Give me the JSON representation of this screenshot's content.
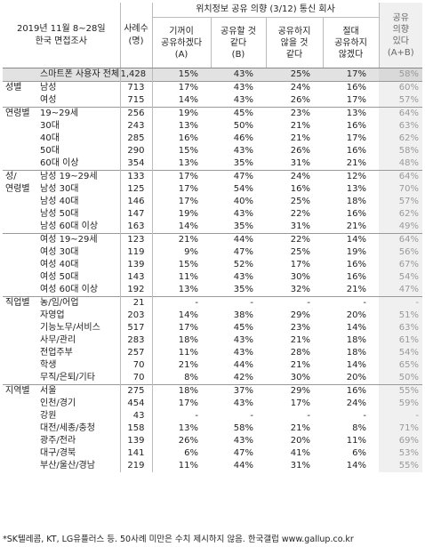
{
  "header": {
    "survey": "2019년 11월 8~28일",
    "survey2": "한국 면접조사",
    "n_label": "사례수",
    "n_unit": "(명)",
    "group_title": "위치정보 공유 의향 (3/12) 통신 회사",
    "cols": [
      {
        "l1": "기꺼이",
        "l2": "공유하겠다",
        "l3": "(A)"
      },
      {
        "l1": "공유할 것",
        "l2": "같다",
        "l3": "(B)"
      },
      {
        "l1": "공유하지",
        "l2": "않을 것",
        "l3": "같다"
      },
      {
        "l1": "절대",
        "l2": "공유하지",
        "l3": "않겠다"
      }
    ],
    "share": {
      "l1": "공유",
      "l2": "의향",
      "l3": "있다",
      "l4": "(A+B)"
    }
  },
  "rows": [
    {
      "group": "",
      "sub": "스마트폰 사용자 전체",
      "n": "1,428",
      "a": "15%",
      "b": "43%",
      "c": "25%",
      "d": "17%",
      "s": "58%",
      "total": true,
      "sep": false
    },
    {
      "group": "성별",
      "sub": "남성",
      "n": "713",
      "a": "17%",
      "b": "43%",
      "c": "24%",
      "d": "16%",
      "s": "60%",
      "sep": true
    },
    {
      "group": "",
      "sub": "여성",
      "n": "715",
      "a": "14%",
      "b": "43%",
      "c": "26%",
      "d": "17%",
      "s": "57%"
    },
    {
      "group": "연령별",
      "sub": "19~29세",
      "n": "256",
      "a": "19%",
      "b": "45%",
      "c": "23%",
      "d": "13%",
      "s": "64%",
      "sep": true
    },
    {
      "group": "",
      "sub": "30대",
      "n": "243",
      "a": "13%",
      "b": "50%",
      "c": "21%",
      "d": "16%",
      "s": "63%"
    },
    {
      "group": "",
      "sub": "40대",
      "n": "285",
      "a": "16%",
      "b": "46%",
      "c": "21%",
      "d": "17%",
      "s": "62%"
    },
    {
      "group": "",
      "sub": "50대",
      "n": "290",
      "a": "15%",
      "b": "43%",
      "c": "26%",
      "d": "16%",
      "s": "58%"
    },
    {
      "group": "",
      "sub": "60대 이상",
      "n": "354",
      "a": "13%",
      "b": "35%",
      "c": "31%",
      "d": "21%",
      "s": "48%"
    },
    {
      "group": "성/",
      "sub": "남성 19~29세",
      "n": "133",
      "a": "17%",
      "b": "47%",
      "c": "24%",
      "d": "12%",
      "s": "64%",
      "sep": true
    },
    {
      "group": "연령별",
      "sub": "남성 30대",
      "n": "125",
      "a": "17%",
      "b": "54%",
      "c": "16%",
      "d": "13%",
      "s": "70%"
    },
    {
      "group": "",
      "sub": "남성 40대",
      "n": "146",
      "a": "17%",
      "b": "40%",
      "c": "25%",
      "d": "18%",
      "s": "57%"
    },
    {
      "group": "",
      "sub": "남성 50대",
      "n": "147",
      "a": "19%",
      "b": "43%",
      "c": "22%",
      "d": "16%",
      "s": "62%"
    },
    {
      "group": "",
      "sub": "남성 60대 이상",
      "n": "163",
      "a": "14%",
      "b": "35%",
      "c": "31%",
      "d": "21%",
      "s": "49%"
    },
    {
      "group": "",
      "sub": "여성 19~29세",
      "n": "123",
      "a": "21%",
      "b": "44%",
      "c": "22%",
      "d": "14%",
      "s": "64%",
      "sep": true
    },
    {
      "group": "",
      "sub": "여성 30대",
      "n": "119",
      "a": "9%",
      "b": "47%",
      "c": "25%",
      "d": "19%",
      "s": "56%"
    },
    {
      "group": "",
      "sub": "여성 40대",
      "n": "139",
      "a": "15%",
      "b": "52%",
      "c": "17%",
      "d": "16%",
      "s": "67%"
    },
    {
      "group": "",
      "sub": "여성 50대",
      "n": "143",
      "a": "11%",
      "b": "43%",
      "c": "30%",
      "d": "16%",
      "s": "54%"
    },
    {
      "group": "",
      "sub": "여성 60대 이상",
      "n": "192",
      "a": "13%",
      "b": "35%",
      "c": "32%",
      "d": "21%",
      "s": "47%"
    },
    {
      "group": "직업별",
      "sub": "농/임/어업",
      "n": "21",
      "a": "-",
      "b": "-",
      "c": "-",
      "d": "-",
      "s": "-",
      "sep": true
    },
    {
      "group": "",
      "sub": "자영업",
      "n": "203",
      "a": "14%",
      "b": "38%",
      "c": "29%",
      "d": "20%",
      "s": "51%"
    },
    {
      "group": "",
      "sub": "기능노무/서비스",
      "n": "517",
      "a": "17%",
      "b": "45%",
      "c": "23%",
      "d": "14%",
      "s": "63%"
    },
    {
      "group": "",
      "sub": "사무/관리",
      "n": "283",
      "a": "18%",
      "b": "43%",
      "c": "21%",
      "d": "18%",
      "s": "61%"
    },
    {
      "group": "",
      "sub": "전업주부",
      "n": "257",
      "a": "11%",
      "b": "43%",
      "c": "28%",
      "d": "18%",
      "s": "54%"
    },
    {
      "group": "",
      "sub": "학생",
      "n": "70",
      "a": "21%",
      "b": "44%",
      "c": "21%",
      "d": "14%",
      "s": "65%"
    },
    {
      "group": "",
      "sub": "무직/은퇴/기타",
      "n": "70",
      "a": "8%",
      "b": "42%",
      "c": "30%",
      "d": "20%",
      "s": "50%"
    },
    {
      "group": "지역별",
      "sub": "서울",
      "n": "275",
      "a": "18%",
      "b": "37%",
      "c": "29%",
      "d": "16%",
      "s": "55%",
      "sep": true
    },
    {
      "group": "",
      "sub": "인천/경기",
      "n": "454",
      "a": "17%",
      "b": "43%",
      "c": "17%",
      "d": "24%",
      "s": "59%"
    },
    {
      "group": "",
      "sub": "강원",
      "n": "43",
      "a": "-",
      "b": "-",
      "c": "-",
      "d": "-",
      "s": "-"
    },
    {
      "group": "",
      "sub": "대전/세종/충청",
      "n": "158",
      "a": "13%",
      "b": "58%",
      "c": "21%",
      "d": "8%",
      "s": "71%"
    },
    {
      "group": "",
      "sub": "광주/전라",
      "n": "139",
      "a": "26%",
      "b": "43%",
      "c": "20%",
      "d": "11%",
      "s": "69%"
    },
    {
      "group": "",
      "sub": "대구/경북",
      "n": "141",
      "a": "6%",
      "b": "47%",
      "c": "41%",
      "d": "6%",
      "s": "53%"
    },
    {
      "group": "",
      "sub": "부산/울산/경남",
      "n": "219",
      "a": "11%",
      "b": "44%",
      "c": "31%",
      "d": "14%",
      "s": "55%"
    }
  ],
  "footnote": "*SK텔레콤, KT, LG유플러스 등. 50사례 미만은 수치 제시하지 않음. 한국갤럽 www.gallup.co.kr"
}
